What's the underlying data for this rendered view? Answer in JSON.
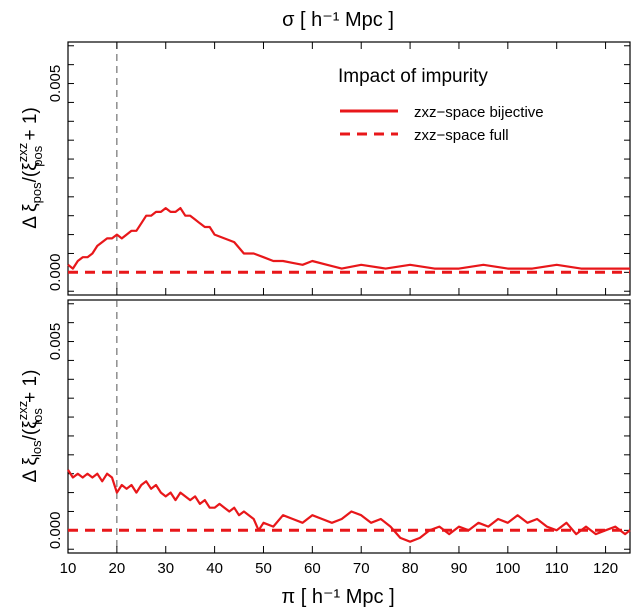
{
  "top_axis_label": "σ [ h⁻¹ Mpc ]",
  "bottom_axis_label": "π [ h⁻¹ Mpc ]",
  "legend": {
    "title": "Impact of impurity",
    "entries": [
      "zxz−space bijective",
      "zxz−space full"
    ]
  },
  "colors": {
    "series": "#e8171a",
    "reference_line": "#555555"
  },
  "chart_data": [
    {
      "type": "line",
      "panel": "top",
      "ylabel": "Δ ξpos / (ξzxz pos + 1)",
      "xlim": [
        10,
        125
      ],
      "ylim": [
        -0.0006,
        0.0061
      ],
      "x_ticks": [
        10,
        20,
        30,
        40,
        50,
        60,
        70,
        80,
        90,
        100,
        110,
        120
      ],
      "y_tick_labels": [
        "0.000",
        "0.005"
      ],
      "y_ticks": [
        0.0,
        0.005
      ],
      "vline_x": 20,
      "series": [
        {
          "name": "zxz−space bijective",
          "style": "solid",
          "x": [
            10,
            11,
            12,
            13,
            14,
            15,
            16,
            17,
            18,
            19,
            20,
            21,
            22,
            23,
            24,
            25,
            26,
            27,
            28,
            29,
            30,
            31,
            32,
            33,
            34,
            35,
            36,
            37,
            38,
            39,
            40,
            42,
            44,
            46,
            48,
            50,
            52,
            54,
            56,
            58,
            60,
            63,
            66,
            70,
            75,
            80,
            85,
            90,
            95,
            100,
            105,
            110,
            115,
            120,
            125
          ],
          "y": [
            0.0002,
            0.0001,
            0.0003,
            0.0004,
            0.0004,
            0.0005,
            0.0007,
            0.0008,
            0.0009,
            0.0009,
            0.001,
            0.0009,
            0.001,
            0.0011,
            0.0011,
            0.0013,
            0.0015,
            0.0015,
            0.0016,
            0.0016,
            0.0017,
            0.0016,
            0.0016,
            0.0017,
            0.0015,
            0.0015,
            0.0014,
            0.0013,
            0.0012,
            0.0012,
            0.001,
            0.0009,
            0.0008,
            0.0005,
            0.0005,
            0.0004,
            0.0003,
            0.0003,
            0.00025,
            0.0002,
            0.0003,
            0.0002,
            0.0001,
            0.0002,
            0.0001,
            0.0002,
            0.0001,
            0.0001,
            0.0002,
            0.0001,
            0.0001,
            0.0002,
            0.0001,
            0.0001,
            0.0001
          ]
        },
        {
          "name": "zxz−space full",
          "style": "dashed",
          "x": [
            10,
            125
          ],
          "y": [
            0.0,
            0.0
          ]
        }
      ]
    },
    {
      "type": "line",
      "panel": "bottom",
      "ylabel": "Δ ξlos / (ξzxz los + 1)",
      "xlim": [
        10,
        125
      ],
      "ylim": [
        -0.0006,
        0.0061
      ],
      "x_ticks": [
        10,
        20,
        30,
        40,
        50,
        60,
        70,
        80,
        90,
        100,
        110,
        120
      ],
      "x_tick_labels": [
        "10",
        "20",
        "30",
        "40",
        "50",
        "60",
        "70",
        "80",
        "90",
        "100",
        "110",
        "120"
      ],
      "y_tick_labels": [
        "0.000",
        "0.005"
      ],
      "y_ticks": [
        0.0,
        0.005
      ],
      "vline_x": 20,
      "series": [
        {
          "name": "zxz−space bijective",
          "style": "solid",
          "x": [
            10,
            11,
            12,
            13,
            14,
            15,
            16,
            17,
            18,
            19,
            20,
            21,
            22,
            23,
            24,
            25,
            26,
            27,
            28,
            29,
            30,
            31,
            32,
            33,
            34,
            35,
            36,
            37,
            38,
            39,
            40,
            41,
            42,
            43,
            44,
            45,
            46,
            47,
            48,
            49,
            50,
            52,
            54,
            56,
            58,
            60,
            62,
            64,
            66,
            68,
            70,
            72,
            74,
            76,
            78,
            80,
            82,
            84,
            86,
            88,
            90,
            92,
            94,
            96,
            98,
            100,
            102,
            104,
            106,
            108,
            110,
            112,
            114,
            116,
            118,
            120,
            122,
            124,
            125
          ],
          "y": [
            0.0016,
            0.0014,
            0.0015,
            0.0014,
            0.0015,
            0.0014,
            0.0015,
            0.0013,
            0.0015,
            0.0014,
            0.001,
            0.0012,
            0.0011,
            0.0012,
            0.001,
            0.0012,
            0.0013,
            0.0011,
            0.0012,
            0.001,
            0.0009,
            0.001,
            0.0008,
            0.001,
            0.0009,
            0.0008,
            0.0009,
            0.0007,
            0.0008,
            0.0006,
            0.0006,
            0.0007,
            0.0006,
            0.0005,
            0.0006,
            0.0004,
            0.0005,
            0.0004,
            0.0003,
            0.0,
            0.0002,
            0.0001,
            0.0004,
            0.0003,
            0.0002,
            0.0004,
            0.0003,
            0.0002,
            0.0003,
            0.0005,
            0.0004,
            0.0002,
            0.0003,
            0.0001,
            -0.0002,
            -0.0003,
            -0.0002,
            0.0,
            0.0001,
            -0.0001,
            0.0001,
            0.0,
            0.0002,
            0.0001,
            0.0003,
            0.0002,
            0.0004,
            0.0002,
            0.0003,
            0.0001,
            0.0,
            0.0002,
            -0.0001,
            0.0001,
            -0.0001,
            0.0,
            0.0001,
            -0.0001,
            0.0
          ]
        },
        {
          "name": "zxz−space full",
          "style": "dashed",
          "x": [
            10,
            125
          ],
          "y": [
            0.0,
            0.0
          ]
        }
      ]
    }
  ]
}
